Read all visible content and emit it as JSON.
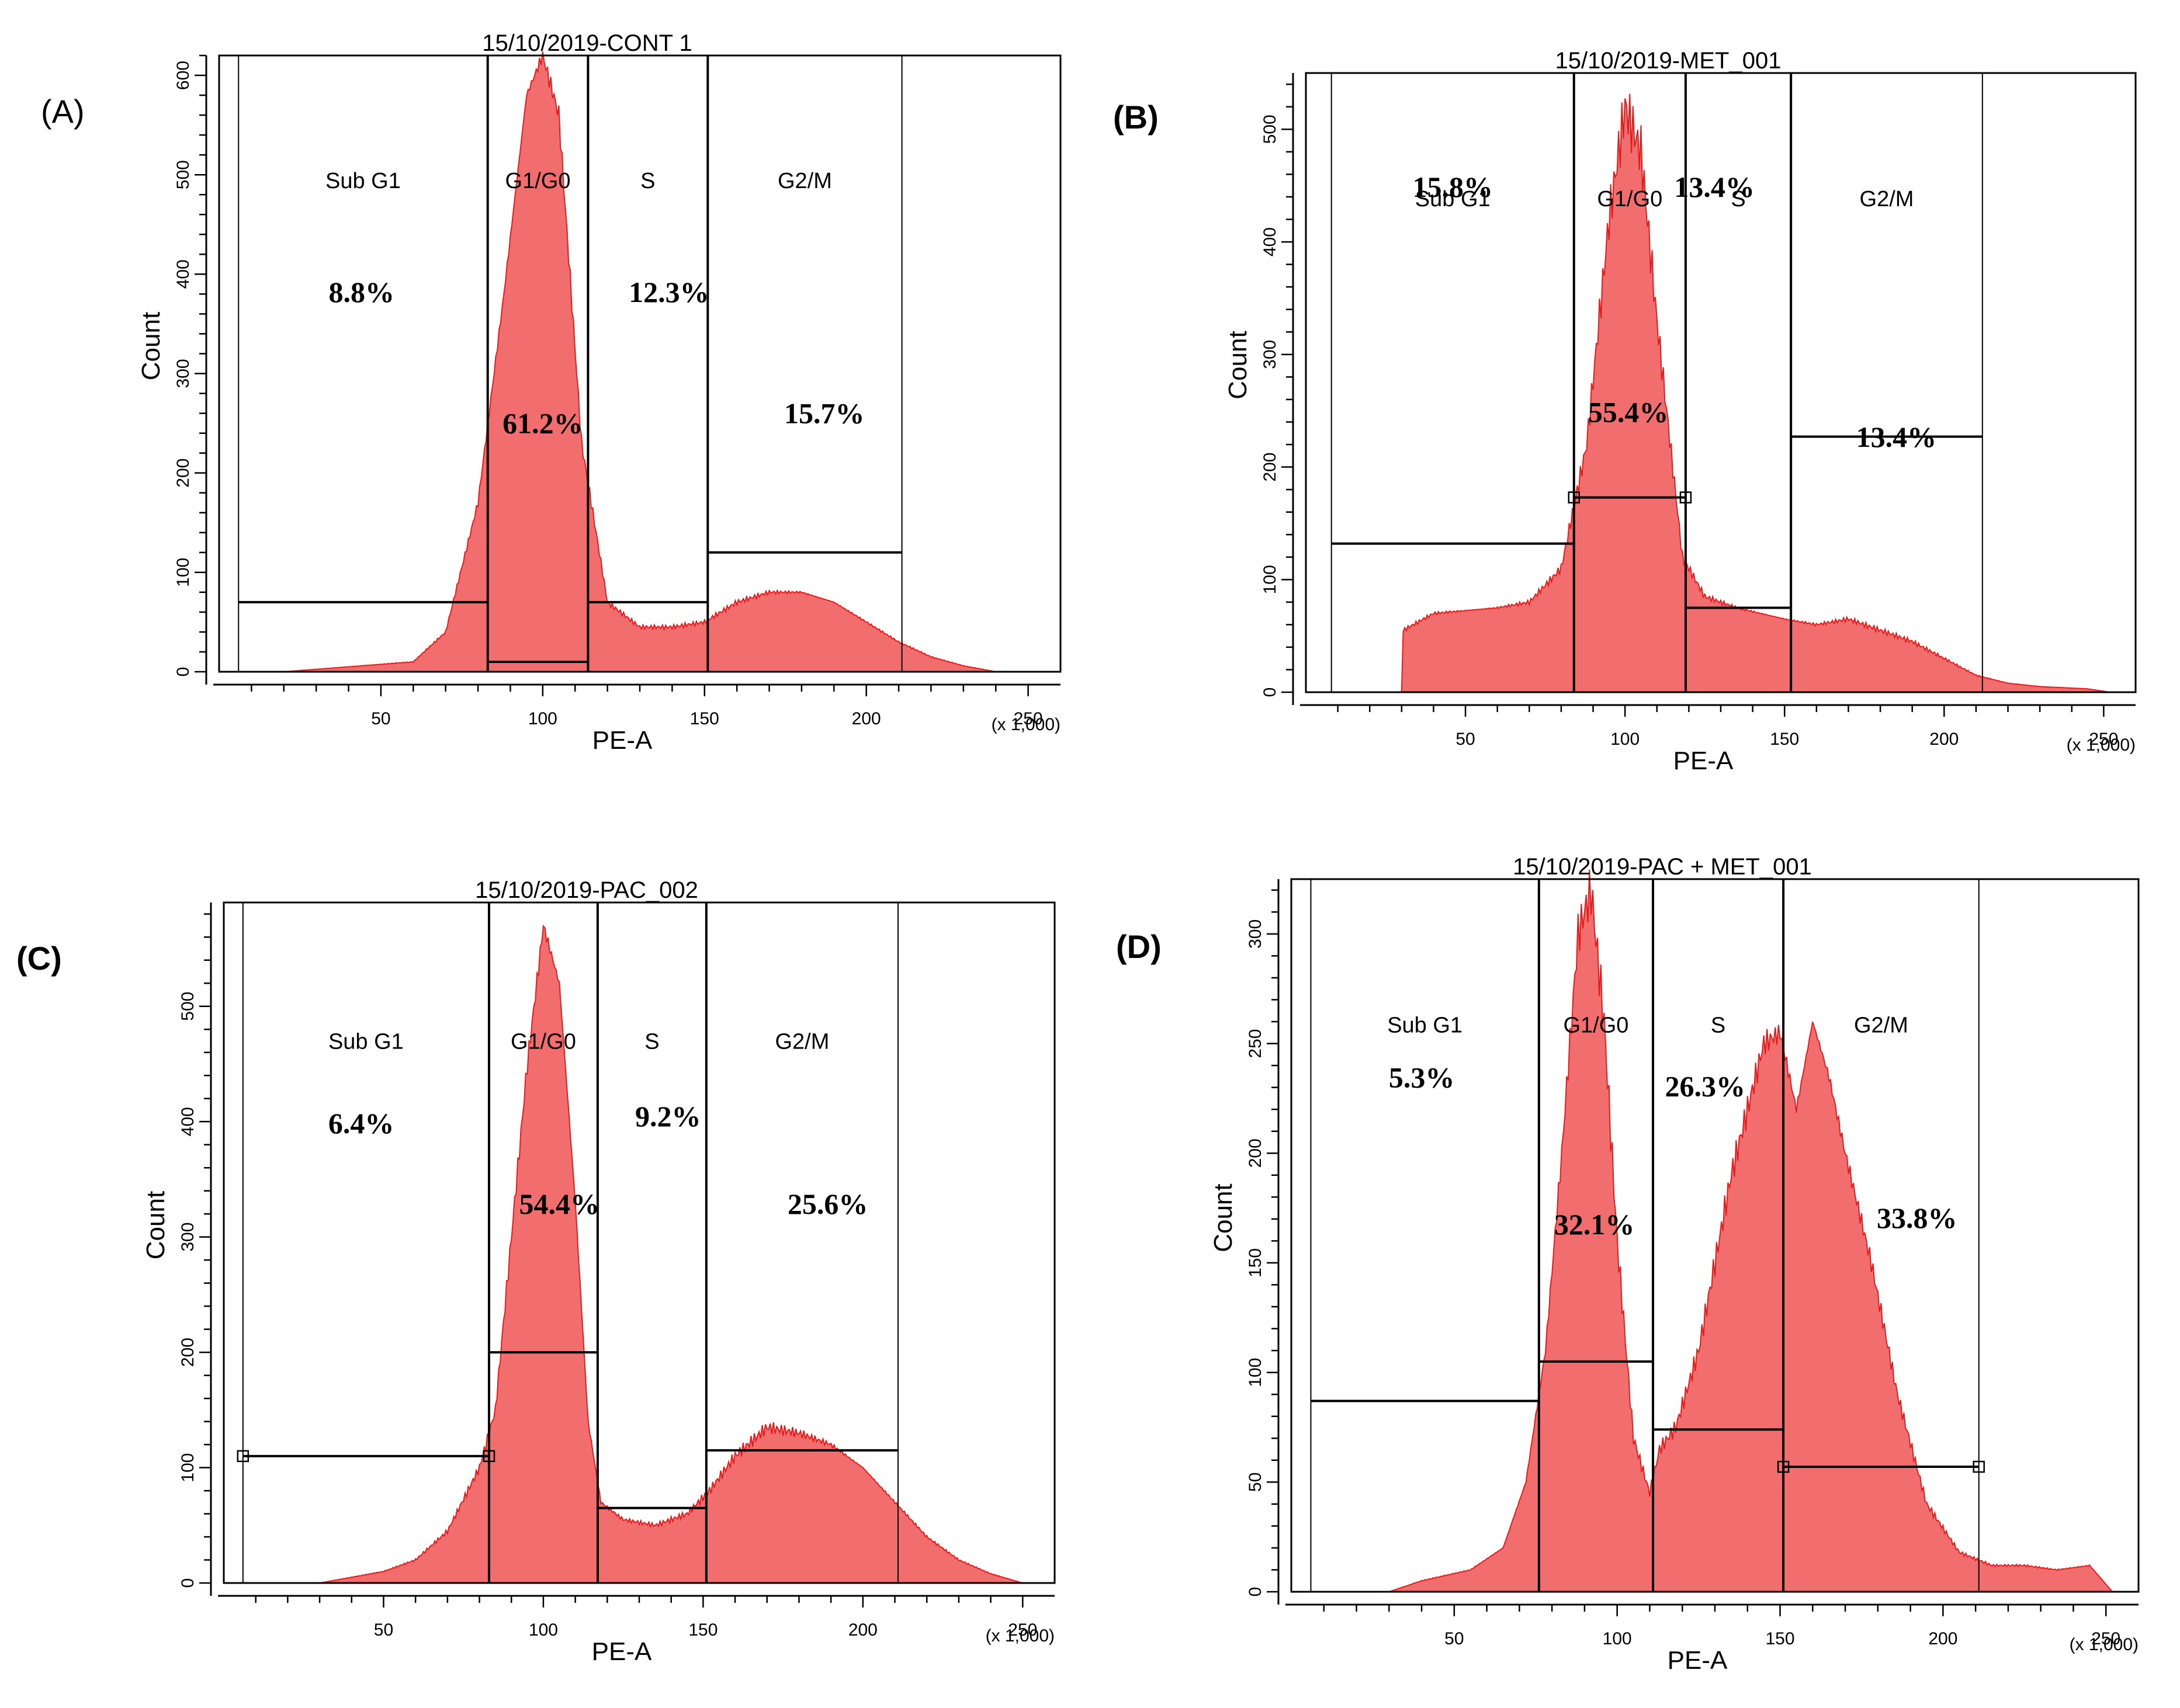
{
  "chart_data": [
    {
      "type": "histogram",
      "panel": "(A)",
      "title": "15/10/2019-CONT 1",
      "xlabel": "PE-A",
      "ylabel": "Count",
      "x_scale_note": "(x 1,000)",
      "xlim": [
        0,
        260
      ],
      "ylim": [
        0,
        620
      ],
      "xticks": [
        50,
        100,
        150,
        200,
        250
      ],
      "yticks": [
        0,
        100,
        200,
        300,
        400,
        500,
        600
      ],
      "x_sample": [
        20,
        40,
        60,
        70,
        80,
        88,
        95,
        100,
        105,
        112,
        120,
        130,
        140,
        150,
        160,
        170,
        180,
        190,
        200,
        210,
        220,
        230,
        240
      ],
      "counts": [
        0,
        5,
        10,
        40,
        170,
        380,
        580,
        620,
        560,
        230,
        70,
        45,
        45,
        50,
        70,
        80,
        80,
        70,
        50,
        30,
        15,
        6,
        0
      ],
      "gates": [
        {
          "name": "Sub G1",
          "percent": "8.8%",
          "x_range": [
            6,
            83
          ],
          "marker": 70,
          "x_pct_at": 44,
          "y_pct_at": 372
        },
        {
          "name": "G1/G0",
          "percent": "61.2%",
          "x_range": [
            83,
            114
          ],
          "marker": 10,
          "x_pct_at": 100,
          "y_pct_at": 240
        },
        {
          "name": "S",
          "percent": "12.3%",
          "x_range": [
            114,
            151
          ],
          "marker": 70,
          "x_pct_at": 139,
          "y_pct_at": 372
        },
        {
          "name": "G2/M",
          "percent": "15.7%",
          "x_range": [
            151,
            211
          ],
          "marker": 120,
          "x_pct_at": 187,
          "y_pct_at": 250
        }
      ]
    },
    {
      "type": "histogram",
      "panel": "(B)",
      "title": "15/10/2019-MET_001",
      "xlabel": "PE-A",
      "ylabel": "Count",
      "x_scale_note": "(x 1,000)",
      "xlim": [
        0,
        260
      ],
      "ylim": [
        0,
        550
      ],
      "xticks": [
        50,
        100,
        150,
        200,
        250
      ],
      "yticks": [
        0,
        100,
        200,
        300,
        400,
        500
      ],
      "x_sample": [
        30,
        30.5,
        40,
        60,
        70,
        80,
        88,
        95,
        100,
        105,
        110,
        118,
        125,
        135,
        150,
        160,
        170,
        180,
        190,
        200,
        210,
        220,
        230,
        245,
        252
      ],
      "counts": [
        0,
        55,
        70,
        75,
        80,
        110,
        220,
        420,
        520,
        480,
        330,
        120,
        85,
        75,
        65,
        60,
        65,
        55,
        45,
        30,
        15,
        8,
        5,
        3,
        0
      ],
      "gates": [
        {
          "name": "Sub G1",
          "percent": "15.8%",
          "x_range": [
            8,
            84
          ],
          "marker": 132,
          "x_pct_at": 46,
          "y_pct_at": 440
        },
        {
          "name": "G1/G0",
          "percent": "55.4%",
          "x_range": [
            84,
            119
          ],
          "marker": 173,
          "x_pct_at": 101,
          "y_pct_at": 240
        },
        {
          "name": "S",
          "percent": "13.4%",
          "x_range": [
            119,
            152
          ],
          "marker": 75,
          "x_pct_at": 128,
          "y_pct_at": 440
        },
        {
          "name": "G2/M",
          "percent": "13.4%",
          "x_range": [
            152,
            212
          ],
          "marker": 227,
          "x_pct_at": 185,
          "y_pct_at": 218
        }
      ]
    },
    {
      "type": "histogram",
      "panel": "(C)",
      "title": "15/10/2019-PAC_002",
      "xlabel": "PE-A",
      "ylabel": "Count",
      "x_scale_note": "(x 1,000)",
      "xlim": [
        0,
        260
      ],
      "ylim": [
        0,
        590
      ],
      "xticks": [
        50,
        100,
        150,
        200,
        250
      ],
      "yticks": [
        0,
        100,
        200,
        300,
        400,
        500
      ],
      "x_sample": [
        30,
        40,
        50,
        60,
        70,
        80,
        85,
        90,
        95,
        100,
        105,
        110,
        114,
        118,
        125,
        135,
        145,
        152,
        160,
        170,
        180,
        190,
        200,
        210,
        220,
        230,
        240,
        250
      ],
      "counts": [
        0,
        5,
        10,
        20,
        45,
        100,
        150,
        300,
        450,
        570,
        520,
        330,
        140,
        70,
        55,
        50,
        60,
        80,
        110,
        135,
        130,
        120,
        100,
        70,
        40,
        20,
        8,
        0
      ],
      "gates": [
        {
          "name": "Sub G1",
          "percent": "6.4%",
          "x_range": [
            6,
            83
          ],
          "marker": 110,
          "x_pct_at": 43,
          "y_pct_at": 390
        },
        {
          "name": "G1/G0",
          "percent": "54.4%",
          "x_range": [
            83,
            117
          ],
          "marker": 200,
          "x_pct_at": 105,
          "y_pct_at": 320
        },
        {
          "name": "S",
          "percent": "9.2%",
          "x_range": [
            117,
            151
          ],
          "marker": 65,
          "x_pct_at": 139,
          "y_pct_at": 396
        },
        {
          "name": "G2/M",
          "percent": "25.6%",
          "x_range": [
            151,
            211
          ],
          "marker": 115,
          "x_pct_at": 189,
          "y_pct_at": 320
        }
      ]
    },
    {
      "type": "histogram",
      "panel": "(D)",
      "title": "15/10/2019-PAC + MET_001",
      "xlabel": "PE-A",
      "ylabel": "Count",
      "x_scale_note": "(x 1,000)",
      "xlim": [
        0,
        260
      ],
      "ylim": [
        0,
        325
      ],
      "xticks": [
        50,
        100,
        150,
        200,
        250
      ],
      "yticks": [
        0,
        50,
        100,
        150,
        200,
        250,
        300
      ],
      "x_sample": [
        30,
        40,
        55,
        65,
        72,
        78,
        83,
        88,
        92,
        96,
        100,
        105,
        110,
        113,
        118,
        125,
        135,
        145,
        150,
        155,
        160,
        165,
        170,
        178,
        186,
        195,
        205,
        215,
        225,
        235,
        245,
        252
      ],
      "counts": [
        0,
        5,
        10,
        20,
        50,
        110,
        200,
        300,
        320,
        260,
        160,
        70,
        45,
        65,
        75,
        110,
        190,
        250,
        255,
        220,
        260,
        235,
        200,
        150,
        90,
        40,
        18,
        12,
        12,
        10,
        12,
        0
      ],
      "gates": [
        {
          "name": "Sub G1",
          "percent": "5.3%",
          "x_range": [
            6,
            76
          ],
          "marker": 87,
          "x_pct_at": 40,
          "y_pct_at": 230
        },
        {
          "name": "G1/G0",
          "percent": "32.1%",
          "x_range": [
            76,
            111
          ],
          "marker": 105,
          "x_pct_at": 93,
          "y_pct_at": 163
        },
        {
          "name": "S",
          "percent": "26.3%",
          "x_range": [
            111,
            151
          ],
          "marker": 74,
          "x_pct_at": 127,
          "y_pct_at": 226
        },
        {
          "name": "G2/M",
          "percent": "33.8%",
          "x_range": [
            151,
            211
          ],
          "marker": 57,
          "x_pct_at": 192,
          "y_pct_at": 166
        }
      ]
    }
  ]
}
